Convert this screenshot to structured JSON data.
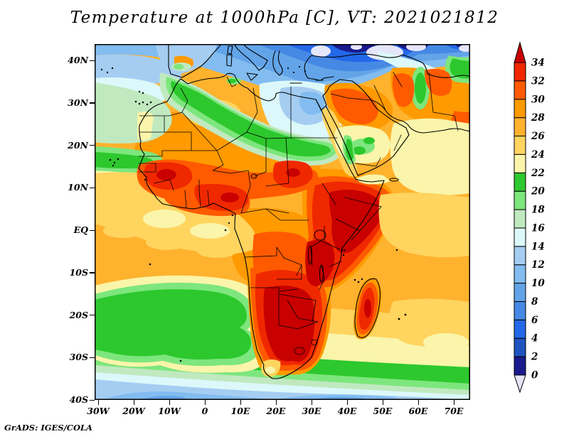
{
  "title": "Temperature at 1000hPa [C], VT: 2021021812",
  "attribution": "GrADS: IGES/COLA",
  "axes": {
    "lat": [
      "40N",
      "30N",
      "20N",
      "10N",
      "EQ",
      "10S",
      "20S",
      "30S",
      "40S"
    ],
    "lon": [
      "30W",
      "20W",
      "10W",
      "0",
      "10E",
      "20E",
      "30E",
      "40E",
      "50E",
      "60E",
      "70E"
    ]
  },
  "colorbar": {
    "levels": [
      0,
      2,
      4,
      6,
      8,
      10,
      12,
      14,
      16,
      18,
      20,
      22,
      24,
      26,
      28,
      30,
      32,
      34
    ],
    "colors": [
      "#E6E6FA",
      "#1A1A8C",
      "#1F53C0",
      "#2368E8",
      "#4689E4",
      "#63A4E8",
      "#82BCF0",
      "#A5CDF2",
      "#DCF8FA",
      "#C0E9C0",
      "#7DE67D",
      "#2DC82D",
      "#FAF5AA",
      "#FFD45F",
      "#FFB22D",
      "#FF9A00",
      "#FF5A00",
      "#F02800",
      "#C80000"
    ]
  },
  "chart_data": {
    "type": "heatmap",
    "title": "Temperature at 1000hPa [C], VT: 2021021812",
    "variable": "Temperature",
    "pressure_level": "1000hPa",
    "units": "C",
    "valid_time": "2021021812",
    "renderer_credit": "GrADS: IGES/COLA",
    "x_tick_labels": [
      "30W",
      "20W",
      "10W",
      "0",
      "10E",
      "20E",
      "30E",
      "40E",
      "50E",
      "60E",
      "70E"
    ],
    "y_tick_labels": [
      "40N",
      "30N",
      "20N",
      "10N",
      "EQ",
      "10S",
      "20S",
      "30S",
      "40S"
    ],
    "lon_range_deg": [
      -30,
      76
    ],
    "lat_range_deg": [
      -40,
      44
    ],
    "contour_interval_C": 2,
    "scale_min_C": 0,
    "scale_max_C": 34,
    "palette_low_to_high": [
      "#E6E6FA",
      "#1A1A8C",
      "#1F53C0",
      "#2368E8",
      "#4689E4",
      "#63A4E8",
      "#82BCF0",
      "#A5CDF2",
      "#DCF8FA",
      "#C0E9C0",
      "#7DE67D",
      "#2DC82D",
      "#FAF5AA",
      "#FFD45F",
      "#FFB22D",
      "#FF9A00",
      "#FF5A00",
      "#F02800",
      "#C80000"
    ],
    "field_summary": [
      {
        "region": "Eastern Europe / Turkey / Black Sea (top edge)",
        "approx_C": "-2 to 8"
      },
      {
        "region": "Mediterranean Sea",
        "approx_C": "8 to 14"
      },
      {
        "region": "Northern Sahara (Libya / Egypt / N Sudan)",
        "approx_C": "12 to 18"
      },
      {
        "region": "Morocco-Algeria to Sudan green band (~18N)",
        "approx_C": "18 to 22"
      },
      {
        "region": "Sahel (Senegal, Mali, Chad, Sudan)",
        "approx_C": "30 to 36"
      },
      {
        "region": "Horn of Africa / Ethiopia / Somalia / Kenya / Tanzania",
        "approx_C": "32 to 36+"
      },
      {
        "region": "Congo basin",
        "approx_C": "28 to 32"
      },
      {
        "region": "Southern Africa interior (Namibia / Botswana / South Africa)",
        "approx_C": "32 to 36+"
      },
      {
        "region": "Madagascar interior",
        "approx_C": "30 to 34"
      },
      {
        "region": "Tropical Atlantic and Indian Ocean",
        "approx_C": "26 to 28"
      },
      {
        "region": "South-east Atlantic (Benguela) cool pool",
        "approx_C": "20 to 22"
      },
      {
        "region": "NE Atlantic off NW Africa",
        "approx_C": "16 to 22"
      },
      {
        "region": "Central Arabia",
        "approx_C": "22 to 24"
      },
      {
        "region": "Southern Ocean south of 35S",
        "approx_C": "8 to 20 decreasing southward"
      }
    ]
  }
}
